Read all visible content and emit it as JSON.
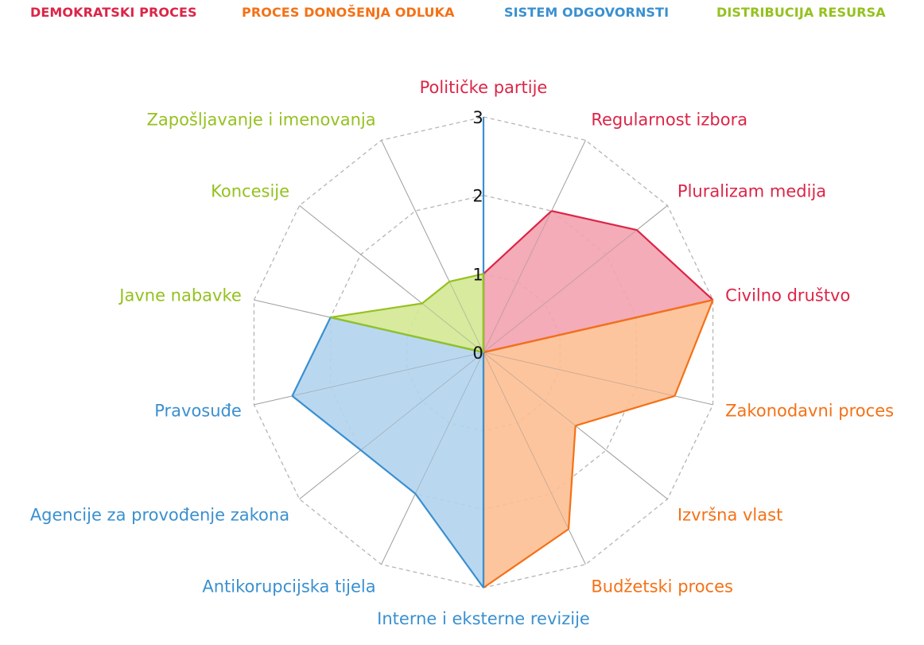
{
  "chart_data": {
    "type": "radar",
    "title": "",
    "legend_position": "top",
    "r_ticks": [
      "0",
      "1",
      "2",
      "3"
    ],
    "rlim": [
      0,
      3
    ],
    "grid": true,
    "axes": [
      "Političke partije",
      "Regularnost izbora",
      "Pluralizam medija",
      "Civilno društvo",
      "Zakonodavni proces",
      "Izvršna vlast",
      "Budžetski proces",
      "Interne i eksterne revizije",
      "Antikorupcijska tijela",
      "Agencije za provođenje zakona",
      "Pravosuđe",
      "Javne nabavke",
      "Koncesije",
      "Zapošljavanje i imenovanja"
    ],
    "series": [
      {
        "name": "DEMOKRATSKI PROCES",
        "color": "#dc2547",
        "fill": "#f2a3b0",
        "values": [
          1,
          2,
          2.5,
          3,
          0,
          0,
          0,
          0,
          0,
          0,
          0,
          0,
          0,
          0
        ]
      },
      {
        "name": "PROCES DONOŠENJA ODLUKA",
        "color": "#f47116",
        "fill": "#fdbf94",
        "values": [
          0,
          0,
          0,
          3,
          2.5,
          1.5,
          2.5,
          3,
          0,
          0,
          0,
          0,
          0,
          0
        ]
      },
      {
        "name": "SISTEM ODGOVORNSTI",
        "color": "#3a90d0",
        "fill": "#b1d4ee",
        "values": [
          3,
          0,
          0,
          0,
          0,
          0,
          0,
          3,
          2,
          2,
          2.5,
          2,
          0,
          0
        ]
      },
      {
        "name": "DISTRIBUCIJA RESURSA",
        "color": "#95c11f",
        "fill": "#d3e894",
        "values": [
          1,
          0,
          0,
          0,
          0,
          0,
          0,
          0,
          0,
          0,
          0,
          2,
          1,
          1
        ]
      }
    ],
    "label_colors": [
      "#dc2547",
      "#dc2547",
      "#dc2547",
      "#dc2547",
      "#f47116",
      "#f47116",
      "#f47116",
      "#3a90d0",
      "#3a90d0",
      "#3a90d0",
      "#3a90d0",
      "#95c11f",
      "#95c11f",
      "#95c11f"
    ]
  }
}
